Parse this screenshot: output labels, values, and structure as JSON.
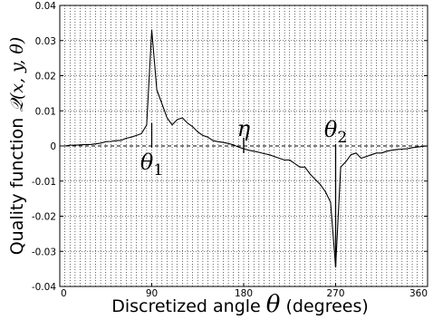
{
  "chart_data": {
    "type": "line",
    "xlabel_text": "Discretized angle",
    "xlabel_symbol": "θ",
    "xlabel_unit": "(degrees)",
    "ylabel_text": "Quality function",
    "ylabel_symbol": "𝒬(x, y, θ)",
    "xlim": [
      0,
      360
    ],
    "ylim": [
      -0.04,
      0.04
    ],
    "x_ticks": [
      0,
      90,
      180,
      270,
      360
    ],
    "x_tick_labels": [
      "0",
      "90",
      "180",
      "270",
      "360"
    ],
    "y_ticks": [
      -0.04,
      -0.03,
      -0.02,
      -0.01,
      0,
      0.01,
      0.02,
      0.03,
      0.04
    ],
    "y_tick_labels": [
      "-0.04",
      "-0.03",
      "-0.02",
      "-0.01",
      "0",
      "0.01",
      "0.02",
      "0.03",
      "0.04"
    ],
    "x_grid_step": 5,
    "grid": true,
    "zero_line": "dashed",
    "series": [
      {
        "x": [
          0,
          5,
          10,
          15,
          20,
          25,
          30,
          35,
          40,
          45,
          50,
          55,
          60,
          65,
          70,
          75,
          80,
          85,
          90,
          95,
          100,
          105,
          110,
          115,
          120,
          125,
          130,
          135,
          140,
          145,
          150,
          155,
          160,
          165,
          170,
          175,
          180,
          185,
          190,
          195,
          200,
          205,
          210,
          215,
          220,
          225,
          230,
          235,
          240,
          245,
          250,
          255,
          260,
          265,
          270,
          275,
          280,
          285,
          290,
          295,
          300,
          305,
          310,
          315,
          320,
          325,
          330,
          335,
          340,
          345,
          350,
          355,
          360
        ],
        "y": [
          0,
          0,
          0.0002,
          0.0002,
          0.0003,
          0.0004,
          0.0004,
          0.0006,
          0.0008,
          0.0012,
          0.0013,
          0.0015,
          0.0016,
          0.0022,
          0.0025,
          0.003,
          0.0035,
          0.006,
          0.033,
          0.016,
          0.012,
          0.008,
          0.006,
          0.0075,
          0.008,
          0.0065,
          0.0055,
          0.004,
          0.003,
          0.0025,
          0.0015,
          0.0012,
          0.001,
          0.0007,
          0.0003,
          -0.0003,
          -0.0008,
          -0.0012,
          -0.0015,
          -0.0018,
          -0.0022,
          -0.0025,
          -0.003,
          -0.0035,
          -0.004,
          -0.004,
          -0.005,
          -0.006,
          -0.006,
          -0.008,
          -0.0095,
          -0.011,
          -0.013,
          -0.016,
          -0.0345,
          -0.006,
          -0.0045,
          -0.0025,
          -0.002,
          -0.0035,
          -0.003,
          -0.0025,
          -0.002,
          -0.002,
          -0.0015,
          -0.0012,
          -0.001,
          -0.0009,
          -0.0008,
          -0.0005,
          -0.0003,
          -0.0001,
          0
        ]
      }
    ],
    "annotations": [
      {
        "text": "θ1",
        "base": "θ",
        "sub": "1",
        "x": 90
      },
      {
        "text": "η",
        "base": "η",
        "sub": "",
        "x": 180
      },
      {
        "text": "θ2",
        "base": "θ",
        "sub": "2",
        "x": 270
      }
    ]
  }
}
